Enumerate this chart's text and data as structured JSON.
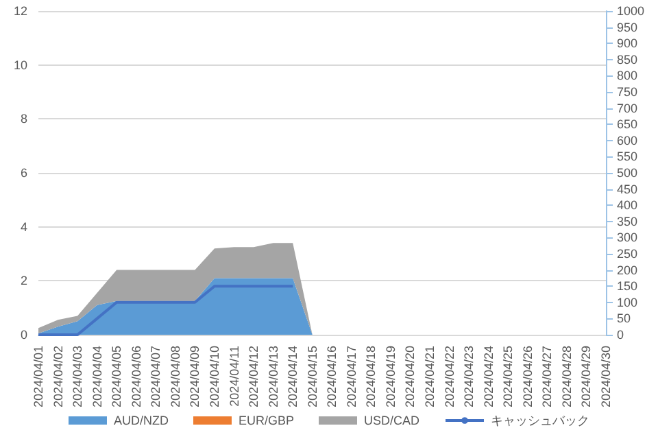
{
  "chart_data": {
    "type": "area",
    "stacked": true,
    "categories": [
      "2024/04/01",
      "2024/04/02",
      "2024/04/03",
      "2024/04/04",
      "2024/04/05",
      "2024/04/06",
      "2024/04/07",
      "2024/04/08",
      "2024/04/09",
      "2024/04/10",
      "2024/04/11",
      "2024/04/12",
      "2024/04/13",
      "2024/04/14",
      "2024/04/15",
      "2024/04/16",
      "2024/04/17",
      "2024/04/18",
      "2024/04/19",
      "2024/04/20",
      "2024/04/21",
      "2024/04/22",
      "2024/04/23",
      "2024/04/24",
      "2024/04/25",
      "2024/04/26",
      "2024/04/27",
      "2024/04/28",
      "2024/04/29",
      "2024/04/30"
    ],
    "series": [
      {
        "name": "AUD/NZD",
        "color": "#5b9bd5",
        "values": [
          0.05,
          0.3,
          0.5,
          1.1,
          1.25,
          1.25,
          1.25,
          1.25,
          1.25,
          2.1,
          2.1,
          2.1,
          2.1,
          2.1,
          0,
          null,
          null,
          null,
          null,
          null,
          null,
          null,
          null,
          null,
          null,
          null,
          null,
          null,
          null,
          null
        ]
      },
      {
        "name": "EUR/GBP",
        "color": "#ed7d31",
        "values": [
          null,
          null,
          null,
          null,
          null,
          null,
          null,
          null,
          null,
          null,
          null,
          null,
          null,
          null,
          null,
          null,
          null,
          null,
          null,
          null,
          null,
          null,
          null,
          null,
          null,
          null,
          null,
          null,
          null,
          null
        ]
      },
      {
        "name": "USD/CAD",
        "color": "#a5a5a5",
        "values": [
          0.2,
          0.25,
          0.2,
          0.45,
          1.15,
          1.15,
          1.15,
          1.15,
          1.15,
          1.1,
          1.15,
          1.15,
          1.3,
          1.3,
          0,
          null,
          null,
          null,
          null,
          null,
          null,
          null,
          null,
          null,
          null,
          null,
          null,
          null,
          null,
          null
        ]
      },
      {
        "name": "キャッシュバック",
        "type": "line",
        "axis": "y2",
        "color": "#4472c4",
        "values": [
          0,
          0,
          0,
          50,
          100,
          100,
          100,
          100,
          100,
          150,
          150,
          150,
          150,
          150,
          null,
          null,
          null,
          null,
          null,
          null,
          null,
          null,
          null,
          null,
          null,
          null,
          null,
          null,
          null,
          null
        ]
      }
    ],
    "ylim": [
      0,
      12
    ],
    "yticks": [
      0,
      2,
      4,
      6,
      8,
      10,
      12
    ],
    "y2lim": [
      0,
      1000
    ],
    "y2ticks": [
      0,
      50,
      100,
      150,
      200,
      250,
      300,
      350,
      400,
      450,
      500,
      550,
      600,
      650,
      700,
      750,
      800,
      850,
      900,
      950,
      1000
    ],
    "grid": "y",
    "legend": "bottom",
    "marker": "none",
    "line_style": "solid"
  }
}
